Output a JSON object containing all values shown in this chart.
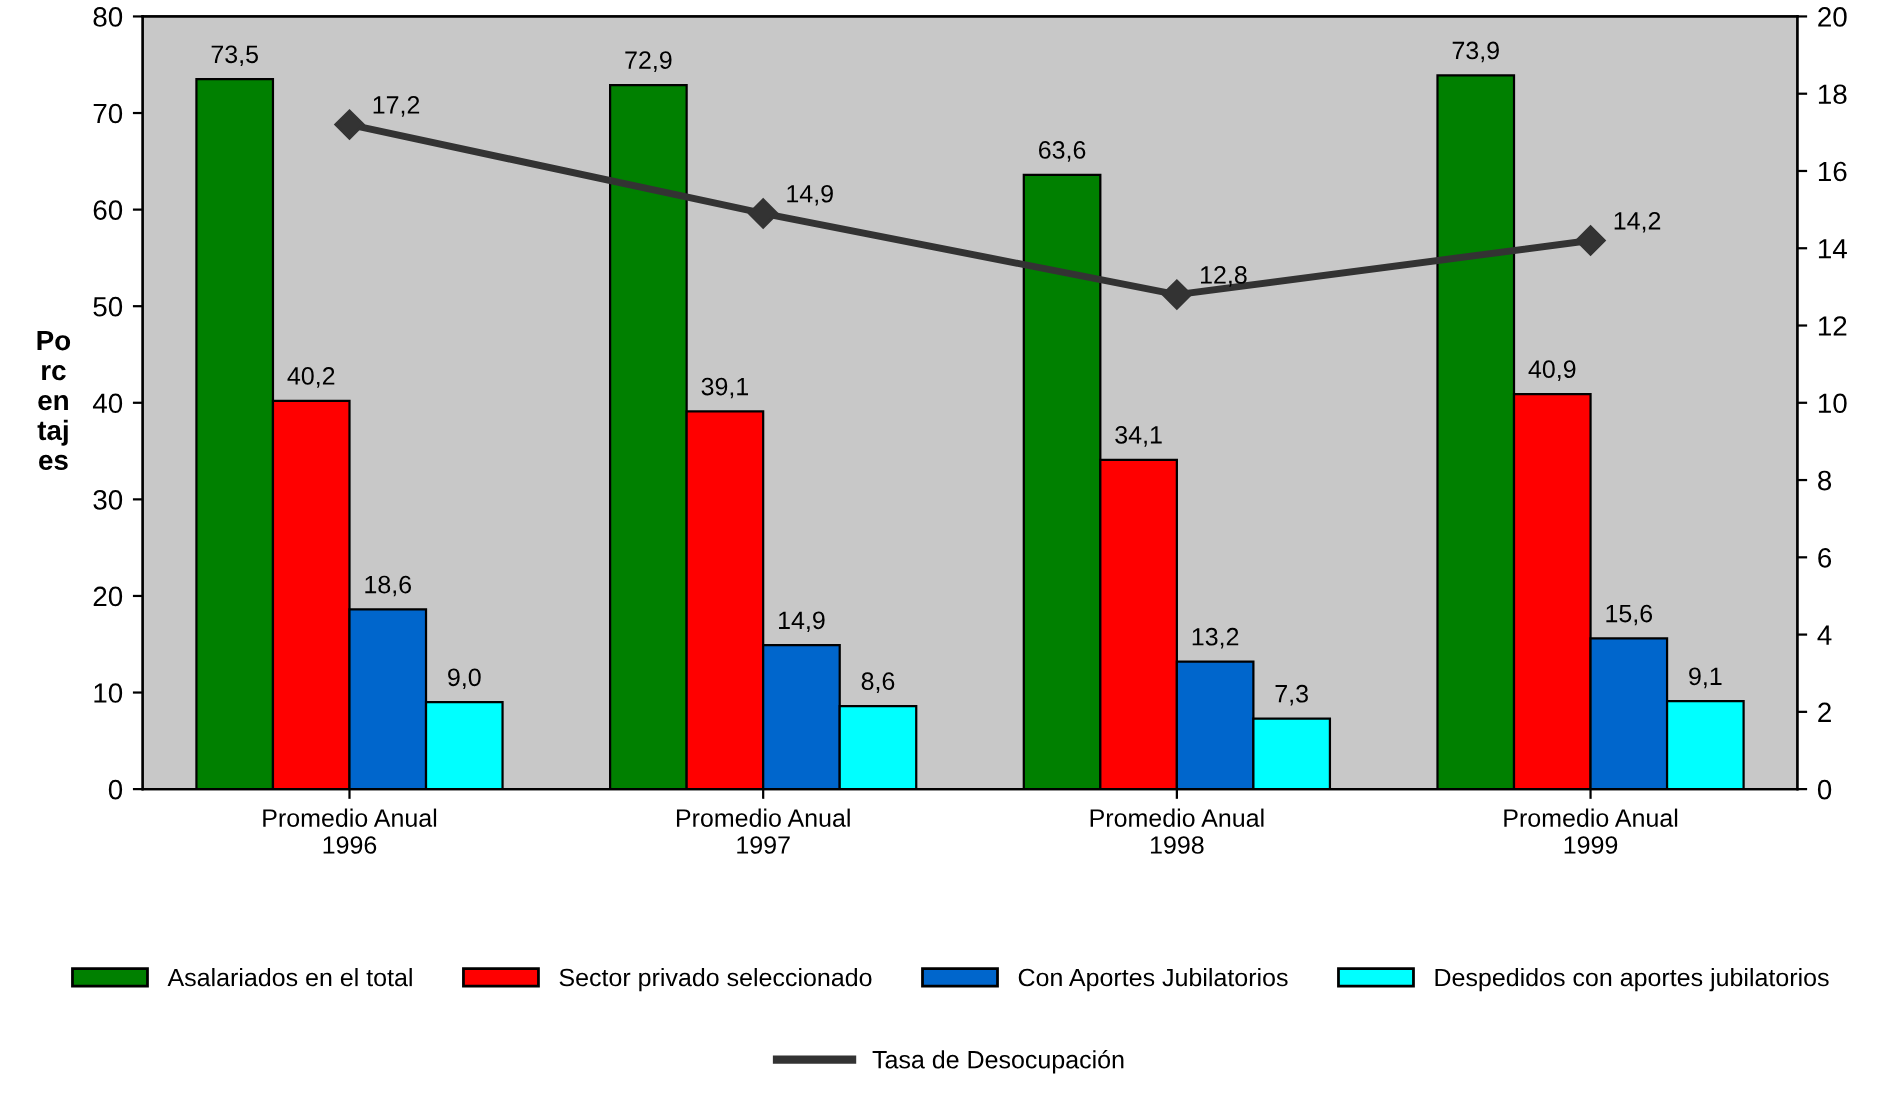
{
  "chart_data": {
    "type": "bar",
    "ylabel": "Po\nrc\nen\ntaj\nes",
    "categories": [
      "Promedio Anual\n1996",
      "Promedio Anual\n1997",
      "Promedio Anual\n1998",
      "Promedio Anual\n1999"
    ],
    "series": [
      {
        "name": "Asalariados en el total",
        "color": "#008000",
        "values": [
          73.5,
          72.9,
          63.6,
          73.9
        ],
        "value_labels": [
          "73,5",
          "72,9",
          "63,6",
          "73,9"
        ]
      },
      {
        "name": "Sector privado seleccionado",
        "color": "#ff0000",
        "values": [
          40.2,
          39.1,
          34.1,
          40.9
        ],
        "value_labels": [
          "40,2",
          "39,1",
          "34,1",
          "40,9"
        ]
      },
      {
        "name": "Con Aportes Jubilatorios",
        "color": "#0066cc",
        "values": [
          18.6,
          14.9,
          13.2,
          15.6
        ],
        "value_labels": [
          "18,6",
          "14,9",
          "13,2",
          "15,6"
        ]
      },
      {
        "name": "Despedidos con aportes jubilatorios",
        "color": "#00ffff",
        "values": [
          9.0,
          8.6,
          7.3,
          9.1
        ],
        "value_labels": [
          "9,0",
          "8,6",
          "7,3",
          "9,1"
        ]
      },
      {
        "name": "Tasa de Desocupación",
        "type": "line",
        "axis": "y2",
        "color": "#333333",
        "marker": "diamond",
        "values": [
          17.2,
          14.9,
          12.8,
          14.2
        ],
        "value_labels": [
          "17,2",
          "14,9",
          "12,8",
          "14,2"
        ]
      }
    ],
    "ylim": [
      0,
      80
    ],
    "yticks": [
      0,
      10,
      20,
      30,
      40,
      50,
      60,
      70,
      80
    ],
    "y2lim": [
      0,
      20
    ],
    "y2ticks": [
      0,
      2,
      4,
      6,
      8,
      10,
      12,
      14,
      16,
      18,
      20
    ],
    "legend": "bottom",
    "grid": false
  }
}
